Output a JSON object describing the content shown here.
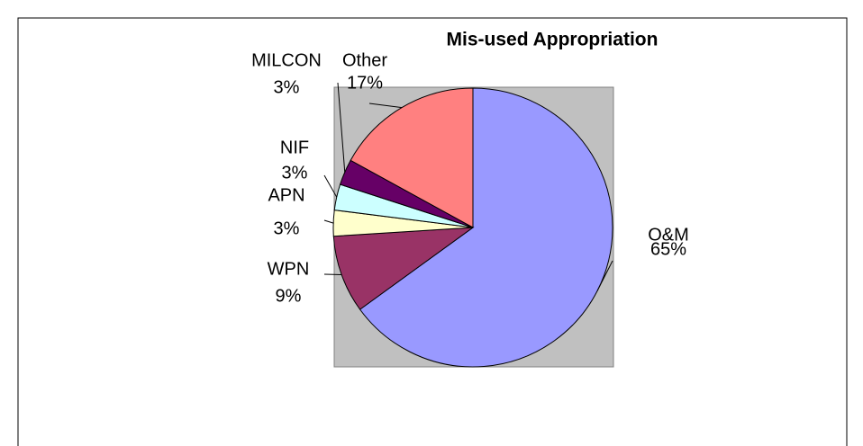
{
  "chart_data": {
    "type": "pie",
    "title": "Mis-used Appropriation",
    "categories": [
      "O&M",
      "WPN",
      "APN",
      "NIF",
      "MILCON",
      "Other"
    ],
    "values": [
      65,
      9,
      3,
      3,
      3,
      17
    ],
    "value_labels": [
      "65%",
      "9%",
      "3%",
      "3%",
      "3%",
      "17%"
    ],
    "colors": [
      "#9999ff",
      "#993366",
      "#ffffcc",
      "#ccffff",
      "#660066",
      "#ff8080"
    ]
  }
}
